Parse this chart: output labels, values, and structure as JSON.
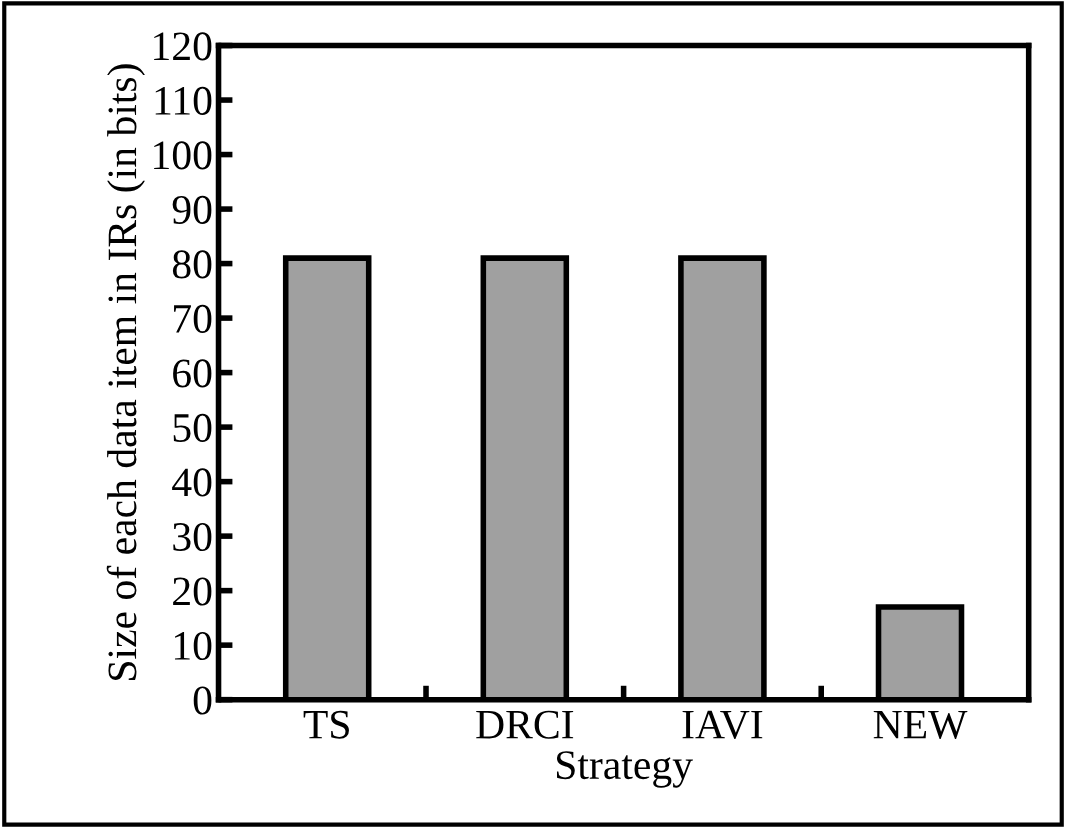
{
  "chart_data": {
    "type": "bar",
    "xlabel": "Strategy",
    "ylabel": "Size of each data item in IRs (in bits)",
    "categories": [
      "TS",
      "DRCI",
      "IAVI",
      "NEW"
    ],
    "values": [
      81,
      81,
      81,
      17
    ],
    "color": "#a0a0a0",
    "ylim": [
      0,
      120
    ],
    "yticks": [
      0,
      10,
      20,
      30,
      40,
      50,
      60,
      70,
      80,
      90,
      100,
      110,
      120
    ],
    "grid": false,
    "legend": false
  }
}
